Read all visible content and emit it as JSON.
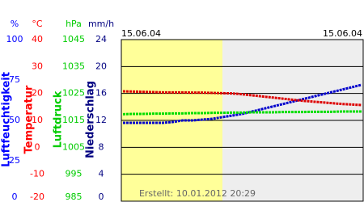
{
  "chart_data": {
    "type": "line",
    "date_labels": [
      "15.06.04",
      "15.06.04"
    ],
    "footer": "Erstellt: 10.01.2012 20:29",
    "axes": [
      {
        "unit": "%",
        "label": "Luftfeuchtigkeit",
        "color": "#0000ff",
        "lim": [
          0,
          100
        ],
        "ticks": [
          100,
          75,
          50,
          25,
          0
        ]
      },
      {
        "unit": "°C",
        "label": "Temperatur",
        "color": "#ff0000",
        "lim": [
          -20,
          40
        ],
        "ticks": [
          40,
          30,
          20,
          10,
          0,
          -10,
          -20
        ]
      },
      {
        "unit": "hPa",
        "label": "Luftdruck",
        "color": "#00cc00",
        "lim": [
          985,
          1045
        ],
        "ticks": [
          1045,
          1035,
          1025,
          1015,
          1005,
          995,
          985
        ]
      },
      {
        "unit": "mm/h",
        "label": "Niederschlag",
        "color": "#000080",
        "lim": [
          0,
          24
        ],
        "ticks": [
          24,
          20,
          16,
          12,
          8,
          4,
          0
        ]
      }
    ],
    "series": [
      {
        "color": "#0000cc",
        "axis": 0,
        "values": [
          48.5,
          48.5,
          48.5,
          48.5,
          48.5,
          49,
          50,
          50,
          50.5,
          51,
          52,
          53,
          54,
          55.5,
          57,
          58.5,
          60,
          61.5,
          63,
          64.5,
          66,
          67.5,
          69,
          70.5,
          72
        ]
      },
      {
        "color": "#dd0000",
        "axis": 1,
        "values": [
          20.8,
          20.7,
          20.6,
          20.5,
          20.4,
          20.4,
          20.4,
          20.3,
          20.3,
          20.2,
          20.1,
          20,
          19.7,
          19.3,
          18.9,
          18.5,
          18.1,
          17.7,
          17.3,
          17,
          16.7,
          16.4,
          16.1,
          15.9,
          15.7
        ]
      },
      {
        "color": "#00dd00",
        "axis": 2,
        "values": [
          1017.3,
          1017.4,
          1017.4,
          1017.5,
          1017.5,
          1017.6,
          1017.6,
          1017.7,
          1017.7,
          1017.8,
          1017.8,
          1017.9,
          1017.9,
          1018,
          1018,
          1018,
          1018.1,
          1018.1,
          1018.1,
          1018.2,
          1018.2,
          1018.2,
          1018.3,
          1018.3,
          1018.3
        ]
      }
    ]
  }
}
